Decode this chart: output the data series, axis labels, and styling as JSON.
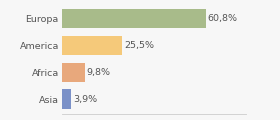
{
  "categories": [
    "Europa",
    "America",
    "Africa",
    "Asia"
  ],
  "values": [
    60.8,
    25.5,
    9.8,
    3.9
  ],
  "labels": [
    "60,8%",
    "25,5%",
    "9,8%",
    "3,9%"
  ],
  "bar_colors": [
    "#a8bb8a",
    "#f5c97a",
    "#e8a87c",
    "#7b91c8"
  ],
  "background_color": "#f7f7f7",
  "xlim": [
    0,
    78
  ],
  "bar_height": 0.72,
  "label_fontsize": 6.8,
  "category_fontsize": 6.8,
  "figsize": [
    2.8,
    1.2
  ],
  "dpi": 100
}
